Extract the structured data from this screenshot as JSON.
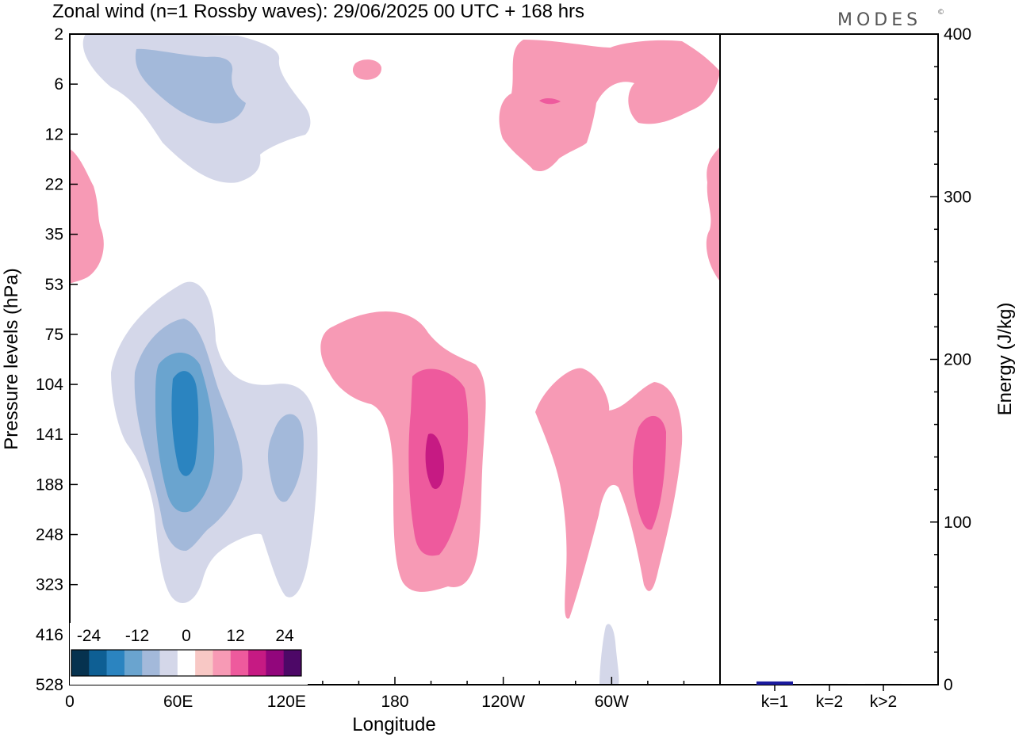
{
  "header": {
    "title": "Zonal wind (n=1 Rossby waves):  29/06/2025  00 UTC  + 168 hrs",
    "logo": "MODES",
    "logo_mark": "©"
  },
  "chart_data": [
    {
      "type": "contour",
      "xlabel": "Longitude",
      "ylabel": "Pressure levels (hPa)",
      "x_ticks": [
        "0",
        "60E",
        "120E",
        "180",
        "120W",
        "60W"
      ],
      "x_range_deg": [
        0,
        360
      ],
      "y_ticks": [
        "2",
        "6",
        "12",
        "22",
        "35",
        "53",
        "75",
        "104",
        "141",
        "188",
        "248",
        "323",
        "416",
        "528"
      ],
      "y_axis": "pressure levels, top 2 hPa to bottom 528 hPa",
      "colorbar": {
        "tick_labels": [
          "-24",
          "-12",
          "0",
          "12",
          "24"
        ],
        "colors": [
          "#06324f",
          "#0e5f94",
          "#2b84c0",
          "#6aa4cf",
          "#a3b9da",
          "#d4d7e9",
          "#ffffff",
          "#f8c8c5",
          "#f79ab5",
          "#ee5a9d",
          "#c61a83",
          "#92067c",
          "#4d0867"
        ]
      },
      "features": [
        {
          "sign": "negative",
          "lon": 60,
          "level_hpa": 141,
          "value_approx": -20
        },
        {
          "sign": "negative",
          "lon": 120,
          "level_hpa": 160,
          "value_approx": -8
        },
        {
          "sign": "negative",
          "lon": 45,
          "level_hpa": 6,
          "value_approx": -8
        },
        {
          "sign": "positive",
          "lon": 200,
          "level_hpa": 150,
          "value_approx": 12
        },
        {
          "sign": "positive",
          "lon": 320,
          "level_hpa": 170,
          "value_approx": 8
        },
        {
          "sign": "positive",
          "lon": 265,
          "level_hpa": 7,
          "value_approx": 10
        },
        {
          "sign": "positive",
          "lon": 5,
          "level_hpa": 35,
          "value_approx": 4
        },
        {
          "sign": "negative",
          "lon": 300,
          "level_hpa": 500,
          "value_approx": -4
        }
      ]
    },
    {
      "type": "bar",
      "categories": [
        "k=1",
        "k=2",
        "k>2"
      ],
      "values": [
        2,
        0.5,
        0.5
      ],
      "ylabel": "Energy (J/kg)",
      "ylim": [
        0,
        400
      ],
      "y_ticks": [
        "0",
        "100",
        "200",
        "300",
        "400"
      ],
      "bar_colors": [
        "#1a1a9e",
        "#000000",
        "#000000"
      ]
    }
  ]
}
